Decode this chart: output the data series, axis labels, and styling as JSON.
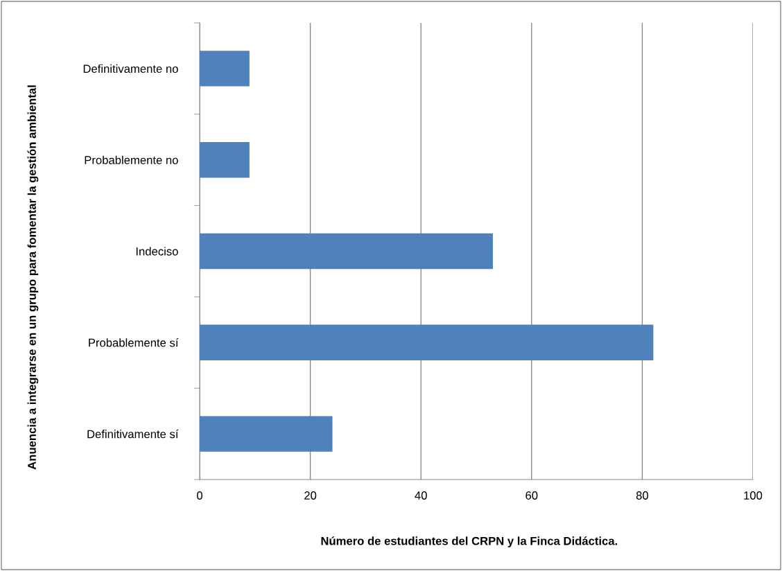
{
  "chart_data": {
    "type": "bar",
    "orientation": "horizontal",
    "categories": [
      "Definitivamente no",
      "Probablemente no",
      "Indeciso",
      "Probablemente sí",
      "Definitivamente sí"
    ],
    "values": [
      9,
      9,
      53,
      82,
      24
    ],
    "color": "#4f81bd",
    "xlim": [
      0,
      100
    ],
    "xticks": [
      0,
      20,
      40,
      60,
      80,
      100
    ],
    "grid": "x",
    "legend": false,
    "xlabel": "Número de estudiantes del CRPN y la Finca Didáctica.",
    "ylabel": "Anuencia a integrarse en un grupo para fomentar la gestión ambiental"
  }
}
